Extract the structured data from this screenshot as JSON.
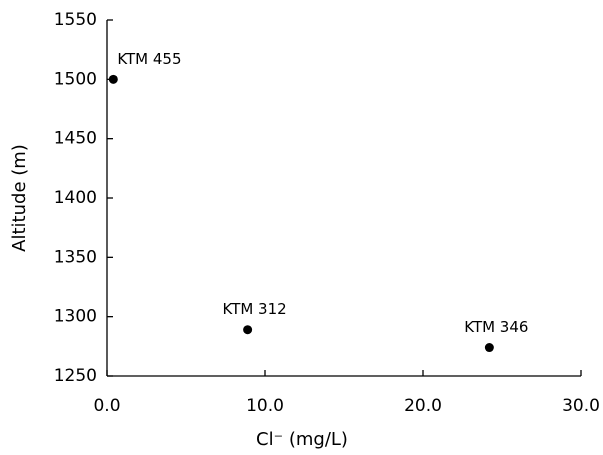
{
  "chart_data": {
    "type": "scatter",
    "x_label": "Cl⁻ (mg/L)",
    "y_label": "Altitude (m)",
    "x": [
      0.4,
      8.9,
      24.2
    ],
    "y": [
      1500,
      1289,
      1274
    ],
    "point_labels": [
      "KTM 455",
      "KTM 312",
      "KTM 346"
    ],
    "color": "#000000",
    "xlim": [
      0,
      30
    ],
    "xticks": [
      {
        "value": 0,
        "label": "0.0"
      },
      {
        "value": 10,
        "label": "10.0"
      },
      {
        "value": 20,
        "label": "20.0"
      },
      {
        "value": 30,
        "label": "30.0"
      }
    ],
    "ylim": [
      1250,
      1550
    ],
    "yticks": [
      1250,
      1300,
      1350,
      1400,
      1450,
      1500,
      1550
    ],
    "grid": false
  }
}
